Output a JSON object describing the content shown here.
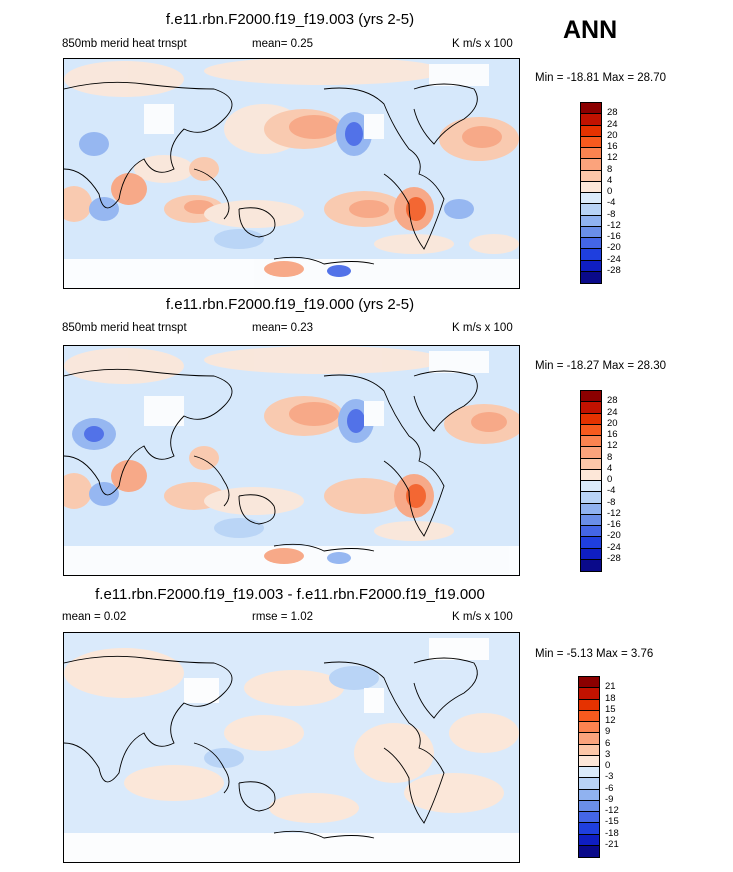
{
  "season": "ANN",
  "panels": [
    {
      "title": "f.e11.rbn.F2000.f19_f19.003 (yrs 2-5)",
      "left_label": "850mb merid heat trnspt",
      "mid_label": "mean=   0.25",
      "right_label": "K m/s x 100",
      "minmax": "Min = -18.81 Max =  28.70",
      "colorbar_labels": [
        "28",
        "24",
        "20",
        "16",
        "12",
        "8",
        "4",
        "0",
        "-4",
        "-8",
        "-12",
        "-16",
        "-20",
        "-24",
        "-28"
      ]
    },
    {
      "title": "f.e11.rbn.F2000.f19_f19.000 (yrs 2-5)",
      "left_label": "850mb merid heat trnspt",
      "mid_label": "mean=   0.23",
      "right_label": "K m/s x 100",
      "minmax": "Min = -18.27 Max =  28.30",
      "colorbar_labels": [
        "28",
        "24",
        "20",
        "16",
        "12",
        "8",
        "4",
        "0",
        "-4",
        "-8",
        "-12",
        "-16",
        "-20",
        "-24",
        "-28"
      ]
    },
    {
      "title": "f.e11.rbn.F2000.f19_f19.003 - f.e11.rbn.F2000.f19_f19.000",
      "left_label": "mean =   0.02",
      "mid_label": "rmse =   1.02",
      "right_label": "K m/s x 100",
      "minmax": "Min =  -5.13 Max =   3.76",
      "colorbar_labels": [
        "21",
        "18",
        "15",
        "12",
        "9",
        "6",
        "3",
        "0",
        "-3",
        "-6",
        "-9",
        "-12",
        "-15",
        "-18",
        "-21"
      ]
    }
  ],
  "colorbar_colors": [
    "#8b0000",
    "#c11200",
    "#e53200",
    "#f75a1e",
    "#fb8350",
    "#fba37c",
    "#fdc7a8",
    "#fde7d8",
    "#dbebfb",
    "#b8d3f6",
    "#90b2f0",
    "#6a8ee8",
    "#4466e6",
    "#1f3fde",
    "#0f1ec2",
    "#0a0a8a"
  ]
}
